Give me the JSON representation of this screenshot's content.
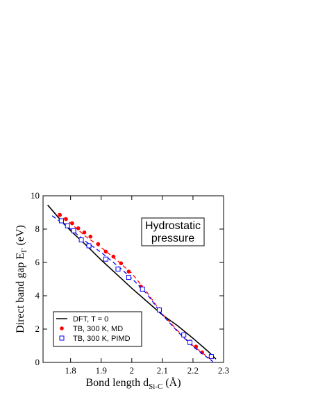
{
  "chart_data": {
    "type": "line",
    "title": "",
    "xlabel": {
      "main": "Bond length  d",
      "sub": "Si-C",
      "unit": " (Å)"
    },
    "ylabel": {
      "main": "Direct band gap  E",
      "sub": "Γ",
      "unit": "  (eV)"
    },
    "xlim": [
      1.71,
      2.3
    ],
    "ylim": [
      0,
      10
    ],
    "x_ticks": [
      1.8,
      1.9,
      2.0,
      2.1,
      2.2,
      2.3
    ],
    "x_tick_labels": [
      "1.8",
      "1.9",
      "2",
      "2.1",
      "2.2",
      "2.3"
    ],
    "y_ticks": [
      0,
      2,
      4,
      6,
      8,
      10
    ],
    "y_tick_labels": [
      "0",
      "2",
      "4",
      "6",
      "8",
      "10"
    ],
    "annotation": [
      "Hydrostatic",
      "pressure"
    ],
    "legend_position": "bottom-left",
    "grid": false,
    "series": [
      {
        "name": "DFT, T = 0",
        "style": "solid-line",
        "color": "#000000",
        "x": [
          1.725,
          1.76,
          1.8,
          1.85,
          1.9,
          1.95,
          2.0,
          2.05,
          2.1,
          2.15,
          2.2,
          2.25,
          2.275
        ],
        "y": [
          9.45,
          8.7,
          7.9,
          7.05,
          6.15,
          5.3,
          4.45,
          3.65,
          2.85,
          2.2,
          1.45,
          0.65,
          0.2
        ]
      },
      {
        "name": "TB,  300 K,  MD",
        "style": "red-dots-dashed",
        "color": "#ff0000",
        "x": [
          1.765,
          1.785,
          1.805,
          1.825,
          1.845,
          1.865,
          1.89,
          1.915,
          1.94,
          1.965,
          1.99,
          2.03,
          2.09,
          2.17,
          2.19,
          2.21,
          2.23
        ],
        "y": [
          8.85,
          8.6,
          8.35,
          8.05,
          7.8,
          7.55,
          7.1,
          6.65,
          6.35,
          5.95,
          5.45,
          4.55,
          3.2,
          1.6,
          1.25,
          0.95,
          0.6
        ],
        "fit_x": [
          1.76,
          1.8,
          1.85,
          1.9,
          1.95,
          2.0,
          2.05,
          2.1,
          2.15,
          2.2,
          2.25,
          2.265
        ],
        "fit_y": [
          8.95,
          8.35,
          7.55,
          6.9,
          6.15,
          5.35,
          4.2,
          2.9,
          1.9,
          1.0,
          0.3,
          0.1
        ]
      },
      {
        "name": "TB,  300 K,  PIMD",
        "style": "blue-squares-dashed",
        "color": "#0000ff",
        "x": [
          1.77,
          1.79,
          1.81,
          1.835,
          1.86,
          1.915,
          1.955,
          1.99,
          2.035,
          2.09,
          2.17,
          2.19,
          2.26
        ],
        "y": [
          8.5,
          8.2,
          7.9,
          7.35,
          7.0,
          6.2,
          5.6,
          5.1,
          4.4,
          3.15,
          1.65,
          1.2,
          0.35
        ],
        "fit_x": [
          1.74,
          1.8,
          1.85,
          1.9,
          1.95,
          2.0,
          2.05,
          2.1,
          2.15,
          2.2,
          2.25,
          2.265
        ],
        "fit_y": [
          8.8,
          8.0,
          7.25,
          6.6,
          5.85,
          5.05,
          4.1,
          2.85,
          1.85,
          0.95,
          0.25,
          0.05
        ]
      }
    ]
  }
}
